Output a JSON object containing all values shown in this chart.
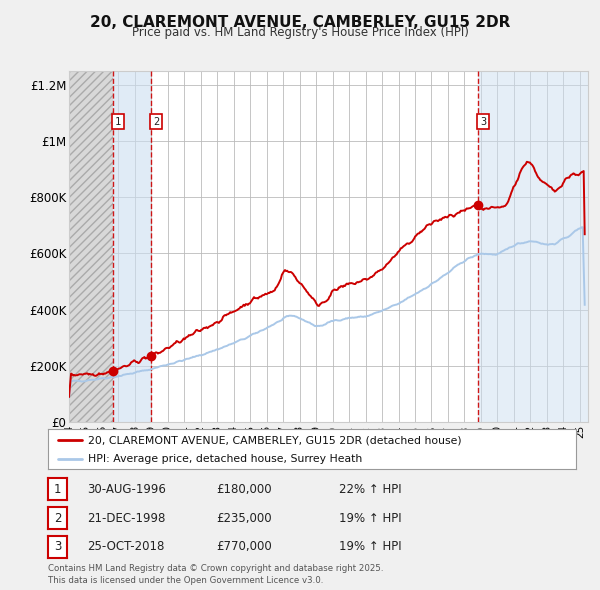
{
  "title": "20, CLAREMONT AVENUE, CAMBERLEY, GU15 2DR",
  "subtitle": "Price paid vs. HM Land Registry's House Price Index (HPI)",
  "legend_line1": "20, CLAREMONT AVENUE, CAMBERLEY, GU15 2DR (detached house)",
  "legend_line2": "HPI: Average price, detached house, Surrey Heath",
  "footnote": "Contains HM Land Registry data © Crown copyright and database right 2025.\nThis data is licensed under the Open Government Licence v3.0.",
  "sale_color": "#cc0000",
  "hpi_color": "#aac8e8",
  "vline_color": "#cc0000",
  "shade_color": "#ccdff0",
  "background_color": "#f0f0f0",
  "plot_bg_color": "#ffffff",
  "grid_color": "#bbbbbb",
  "transactions": [
    {
      "label": "1",
      "date_num": 1996.66,
      "price": 180000,
      "pct": "22%",
      "date_str": "30-AUG-1996"
    },
    {
      "label": "2",
      "date_num": 1998.97,
      "price": 235000,
      "pct": "19%",
      "date_str": "21-DEC-1998"
    },
    {
      "label": "3",
      "date_num": 2018.82,
      "price": 770000,
      "pct": "19%",
      "date_str": "25-OCT-2018"
    }
  ],
  "xmin": 1994.0,
  "xmax": 2025.5,
  "ymin": 0,
  "ymax": 1250000,
  "yticks": [
    0,
    200000,
    400000,
    600000,
    800000,
    1000000,
    1200000
  ],
  "ytick_labels": [
    "£0",
    "£200K",
    "£400K",
    "£600K",
    "£800K",
    "£1M",
    "£1.2M"
  ]
}
